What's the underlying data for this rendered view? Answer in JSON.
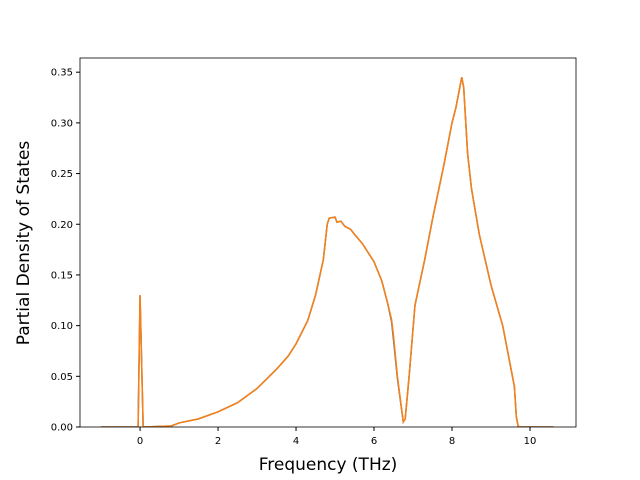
{
  "chart_data": {
    "type": "line",
    "xlabel": "Frequency (THz)",
    "ylabel": "Partial Density of States",
    "x": [
      -1,
      -0.05,
      0,
      0.08,
      0.1,
      0.8,
      1,
      1.5,
      2,
      2.5,
      3,
      3.5,
      3.8,
      4,
      4.3,
      4.5,
      4.7,
      4.8,
      4.85,
      5,
      5.05,
      5.15,
      5.25,
      5.4,
      5.5,
      5.7,
      6,
      6.2,
      6.35,
      6.45,
      6.5,
      6.6,
      6.75,
      6.8,
      6.9,
      7.05,
      7.3,
      7.5,
      7.8,
      8,
      8.1,
      8.25,
      8.3,
      8.4,
      8.5,
      8.7,
      9,
      9.3,
      9.5,
      9.6,
      9.65,
      9.7,
      10.6
    ],
    "series": [
      {
        "color": "#1f77b4",
        "values": [
          0,
          0,
          0.13,
          0,
          0,
          0.001,
          0.004,
          0.008,
          0.015,
          0.024,
          0.038,
          0.057,
          0.07,
          0.082,
          0.105,
          0.13,
          0.165,
          0.2,
          0.206,
          0.207,
          0.202,
          0.203,
          0.198,
          0.195,
          0.19,
          0.181,
          0.163,
          0.144,
          0.122,
          0.104,
          0.086,
          0.048,
          0.005,
          0.008,
          0.05,
          0.12,
          0.165,
          0.205,
          0.26,
          0.3,
          0.315,
          0.345,
          0.335,
          0.27,
          0.235,
          0.19,
          0.14,
          0.1,
          0.06,
          0.04,
          0.01,
          0,
          0
        ]
      },
      {
        "color": "#ff7f0e",
        "values": [
          0,
          0,
          0.13,
          0,
          0,
          0.001,
          0.004,
          0.008,
          0.015,
          0.024,
          0.038,
          0.057,
          0.07,
          0.082,
          0.105,
          0.13,
          0.165,
          0.2,
          0.206,
          0.207,
          0.202,
          0.203,
          0.198,
          0.195,
          0.19,
          0.181,
          0.163,
          0.144,
          0.122,
          0.106,
          0.09,
          0.05,
          0.005,
          0.008,
          0.05,
          0.12,
          0.165,
          0.205,
          0.26,
          0.3,
          0.315,
          0.345,
          0.335,
          0.27,
          0.235,
          0.19,
          0.14,
          0.1,
          0.06,
          0.04,
          0.01,
          0,
          0
        ]
      }
    ],
    "xlim": [
      -1.54,
      11.18
    ],
    "ylim": [
      0,
      0.364
    ],
    "xticks": [
      0,
      2,
      4,
      6,
      8,
      10
    ],
    "yticks": [
      {
        "value": 0,
        "label": "0.00"
      },
      {
        "value": 0.05,
        "label": "0.05"
      },
      {
        "value": 0.1,
        "label": "0.10"
      },
      {
        "value": 0.15,
        "label": "0.15"
      },
      {
        "value": 0.2,
        "label": "0.20"
      },
      {
        "value": 0.25,
        "label": "0.25"
      },
      {
        "value": 0.3,
        "label": "0.30"
      },
      {
        "value": 0.35,
        "label": "0.35"
      }
    ]
  }
}
